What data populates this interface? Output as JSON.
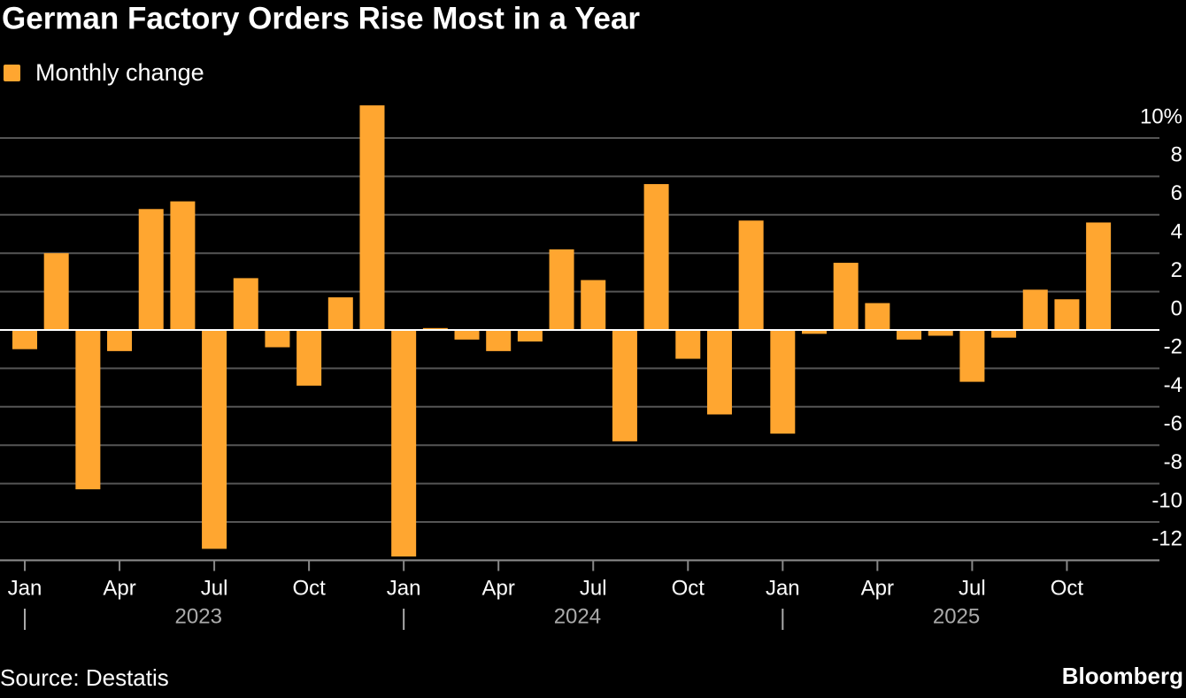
{
  "chart_data": {
    "type": "bar",
    "title": "German Factory Orders Rise Most in a Year",
    "legend": "top-left",
    "series": [
      {
        "name": "Monthly change",
        "color": "#ffa630",
        "values": [
          -1.0,
          4.0,
          -8.3,
          -1.1,
          6.3,
          6.7,
          -11.4,
          2.7,
          -0.9,
          -2.9,
          1.7,
          11.7,
          -11.8,
          0.1,
          -0.5,
          -1.1,
          -0.6,
          4.2,
          2.6,
          -5.8,
          7.6,
          -1.5,
          -4.4,
          5.7,
          -5.4,
          -0.2,
          3.5,
          1.4,
          -0.5,
          -0.3,
          -2.7,
          -0.4,
          2.1,
          1.6,
          5.6
        ]
      }
    ],
    "categories": [
      "Jan",
      null,
      null,
      "Apr",
      null,
      null,
      "Jul",
      null,
      null,
      "Oct",
      null,
      null,
      "Jan",
      null,
      null,
      "Apr",
      null,
      null,
      "Jul",
      null,
      null,
      "Oct",
      null,
      null,
      "Jan",
      null,
      null,
      "Apr",
      null,
      null,
      "Jul",
      null,
      null,
      "Oct",
      null
    ],
    "years": [
      "2023",
      "2024",
      "2025"
    ],
    "ylim": [
      -12,
      12
    ],
    "yticks": [
      {
        "value": 10,
        "label": "10%"
      },
      8,
      6,
      4,
      2,
      0,
      -2,
      -4,
      -6,
      -8,
      -10,
      -12
    ],
    "grid": true,
    "source": "Source: Destatis",
    "brand": "Bloomberg"
  }
}
